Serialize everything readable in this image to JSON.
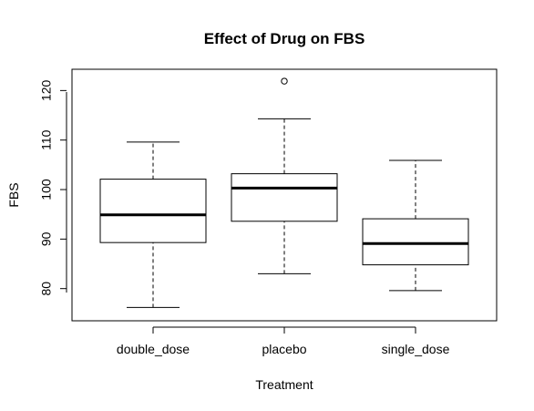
{
  "chart_data": {
    "type": "boxplot",
    "title": "Effect of Drug on FBS",
    "xlabel": "Treatment",
    "ylabel": "FBS",
    "categories": [
      "double_dose",
      "placebo",
      "single_dose"
    ],
    "yticks": [
      80,
      90,
      100,
      110,
      120
    ],
    "ylim": [
      73.5,
      124.3
    ],
    "boxes": [
      {
        "category": "double_dose",
        "whisker_low": 76.2,
        "q1": 89.3,
        "median": 94.9,
        "q3": 102.1,
        "whisker_high": 109.6,
        "outliers": []
      },
      {
        "category": "placebo",
        "whisker_low": 83.0,
        "q1": 93.6,
        "median": 100.3,
        "q3": 103.2,
        "whisker_high": 114.3,
        "outliers": [
          121.9
        ]
      },
      {
        "category": "single_dose",
        "whisker_low": 79.6,
        "q1": 84.8,
        "median": 89.1,
        "q3": 94.1,
        "whisker_high": 105.9,
        "outliers": []
      }
    ],
    "grid": false,
    "legend": "none"
  }
}
